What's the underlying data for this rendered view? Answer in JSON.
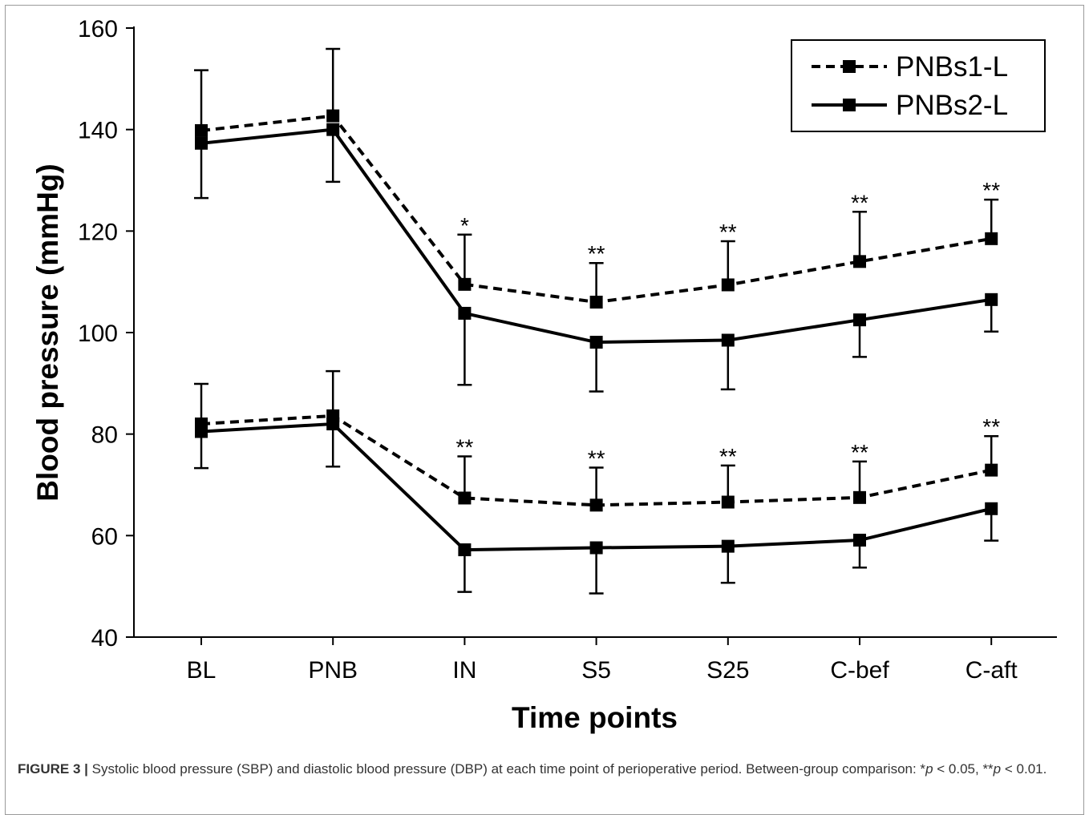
{
  "caption": {
    "label": "FIGURE 3 |",
    "text": "Systolic blood pressure (SBP) and diastolic blood pressure (DBP) at each time point of perioperative period. Between-group comparison: *",
    "p1": "p",
    "t1": " < 0.05, **",
    "p2": "p",
    "t2": " < 0.01."
  },
  "chart_data": {
    "type": "line",
    "xlabel": "Time points",
    "ylabel": "Blood pressure (mmHg)",
    "ylim": [
      40,
      160
    ],
    "yticks": [
      40,
      60,
      80,
      100,
      120,
      140,
      160
    ],
    "categories": [
      "BL",
      "PNB",
      "IN",
      "S5",
      "S25",
      "C-bef",
      "C-aft"
    ],
    "legend_position": "top-right",
    "series": [
      {
        "name": "PNBs1-L",
        "style": "dashed",
        "measure": "SBP",
        "values": [
          139.8,
          142.7,
          109.5,
          106.0,
          109.4,
          114.0,
          118.5
        ],
        "error_up": [
          151.7,
          155.9,
          119.3,
          113.7,
          118.0,
          123.8,
          126.2
        ],
        "error_down": null
      },
      {
        "name": "PNBs2-L",
        "style": "solid",
        "measure": "SBP",
        "values": [
          137.3,
          140.0,
          103.8,
          98.1,
          98.5,
          102.5,
          106.5
        ],
        "error_up": null,
        "error_down": [
          126.5,
          129.7,
          89.7,
          88.4,
          88.8,
          95.2,
          100.2
        ]
      },
      {
        "name": "PNBs1-L",
        "style": "dashed",
        "measure": "DBP",
        "values": [
          82.0,
          83.6,
          67.4,
          66.0,
          66.6,
          67.5,
          72.9
        ],
        "error_up": [
          89.9,
          92.4,
          75.6,
          73.4,
          73.8,
          74.6,
          79.6
        ],
        "error_down": null
      },
      {
        "name": "PNBs2-L",
        "style": "solid",
        "measure": "DBP",
        "values": [
          80.5,
          82.0,
          57.2,
          57.6,
          57.9,
          59.1,
          65.3
        ],
        "error_up": null,
        "error_down": [
          73.3,
          73.6,
          48.9,
          48.6,
          50.7,
          53.7,
          59.0
        ]
      }
    ],
    "annotations": [
      {
        "category": "IN",
        "measure": "SBP",
        "text": "*"
      },
      {
        "category": "S5",
        "measure": "SBP",
        "text": "**"
      },
      {
        "category": "S25",
        "measure": "SBP",
        "text": "**"
      },
      {
        "category": "C-bef",
        "measure": "SBP",
        "text": "**"
      },
      {
        "category": "C-aft",
        "measure": "SBP",
        "text": "**"
      },
      {
        "category": "IN",
        "measure": "DBP",
        "text": "**"
      },
      {
        "category": "S5",
        "measure": "DBP",
        "text": "**"
      },
      {
        "category": "S25",
        "measure": "DBP",
        "text": "**"
      },
      {
        "category": "C-bef",
        "measure": "DBP",
        "text": "**"
      },
      {
        "category": "C-aft",
        "measure": "DBP",
        "text": "**"
      }
    ],
    "legend": [
      {
        "label": "PNBs1-L",
        "style": "dashed"
      },
      {
        "label": "PNBs2-L",
        "style": "solid"
      }
    ],
    "colors": {
      "line": "#000000",
      "marker": "#000000"
    }
  }
}
